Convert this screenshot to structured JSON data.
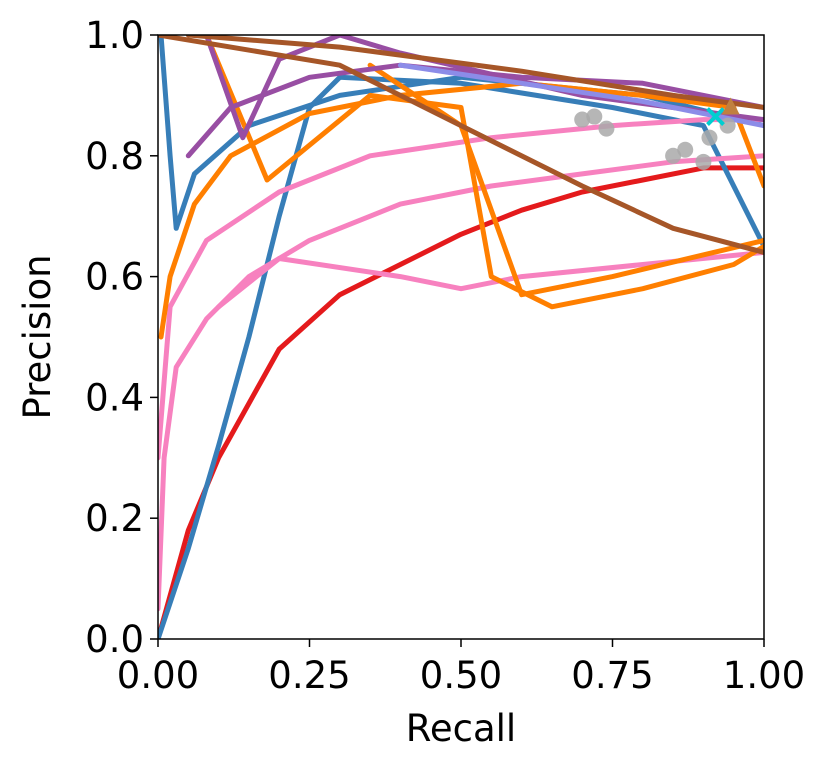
{
  "chart_data": {
    "type": "line",
    "title": "",
    "xlabel": "Recall",
    "ylabel": "Precision",
    "xlim": [
      0,
      1
    ],
    "ylim": [
      0,
      1
    ],
    "xticks": [
      "0.00",
      "0.25",
      "0.50",
      "0.75",
      "1.00"
    ],
    "yticks": [
      "0.0",
      "0.2",
      "0.4",
      "0.6",
      "0.8",
      "1.0"
    ],
    "grid": false,
    "legend": "none",
    "series": [
      {
        "color": "#e41a1c",
        "points": [
          [
            0,
            0
          ],
          [
            0.05,
            0.18
          ],
          [
            0.1,
            0.3
          ],
          [
            0.2,
            0.48
          ],
          [
            0.3,
            0.57
          ],
          [
            0.4,
            0.62
          ],
          [
            0.5,
            0.67
          ],
          [
            0.6,
            0.71
          ],
          [
            0.7,
            0.74
          ],
          [
            0.8,
            0.76
          ],
          [
            0.9,
            0.78
          ],
          [
            1.0,
            0.78
          ]
        ]
      },
      {
        "color": "#377eb8",
        "points": [
          [
            0,
            0
          ],
          [
            0.05,
            0.15
          ],
          [
            0.1,
            0.32
          ],
          [
            0.15,
            0.5
          ],
          [
            0.2,
            0.7
          ],
          [
            0.25,
            0.88
          ],
          [
            0.3,
            0.93
          ],
          [
            0.5,
            0.92
          ],
          [
            0.75,
            0.88
          ],
          [
            0.9,
            0.85
          ],
          [
            1.0,
            0.65
          ]
        ]
      },
      {
        "color": "#377eb8",
        "points": [
          [
            0.005,
            1.0
          ],
          [
            0.02,
            0.8
          ],
          [
            0.03,
            0.68
          ],
          [
            0.06,
            0.77
          ],
          [
            0.15,
            0.85
          ],
          [
            0.3,
            0.9
          ],
          [
            0.5,
            0.93
          ],
          [
            0.8,
            0.9
          ],
          [
            1.0,
            0.85
          ]
        ]
      },
      {
        "color": "#f781bf",
        "points": [
          [
            0,
            0.05
          ],
          [
            0.01,
            0.3
          ],
          [
            0.03,
            0.45
          ],
          [
            0.08,
            0.53
          ],
          [
            0.15,
            0.6
          ],
          [
            0.25,
            0.66
          ],
          [
            0.4,
            0.72
          ],
          [
            0.55,
            0.75
          ],
          [
            0.7,
            0.77
          ],
          [
            0.85,
            0.79
          ],
          [
            1.0,
            0.8
          ]
        ]
      },
      {
        "color": "#f781bf",
        "points": [
          [
            0,
            0.3
          ],
          [
            0.02,
            0.55
          ],
          [
            0.08,
            0.66
          ],
          [
            0.2,
            0.74
          ],
          [
            0.35,
            0.8
          ],
          [
            0.55,
            0.83
          ],
          [
            0.75,
            0.85
          ],
          [
            0.9,
            0.86
          ],
          [
            1.0,
            0.86
          ]
        ]
      },
      {
        "color": "#f781bf",
        "points": [
          [
            0.1,
            0.55
          ],
          [
            0.2,
            0.63
          ],
          [
            0.4,
            0.6
          ],
          [
            0.5,
            0.58
          ],
          [
            0.6,
            0.6
          ],
          [
            0.8,
            0.62
          ],
          [
            1.0,
            0.64
          ]
        ]
      },
      {
        "color": "#ff7f00",
        "points": [
          [
            0.005,
            0.5
          ],
          [
            0.02,
            0.6
          ],
          [
            0.06,
            0.72
          ],
          [
            0.12,
            0.8
          ],
          [
            0.25,
            0.87
          ],
          [
            0.4,
            0.9
          ],
          [
            0.6,
            0.92
          ],
          [
            0.8,
            0.9
          ],
          [
            0.95,
            0.88
          ],
          [
            1.0,
            0.75
          ]
        ]
      },
      {
        "color": "#ff7f00",
        "points": [
          [
            0.08,
            1.0
          ],
          [
            0.18,
            0.76
          ],
          [
            0.35,
            0.9
          ],
          [
            0.5,
            0.88
          ],
          [
            0.55,
            0.6
          ],
          [
            0.65,
            0.55
          ],
          [
            0.8,
            0.58
          ],
          [
            0.95,
            0.62
          ],
          [
            1.0,
            0.65
          ]
        ]
      },
      {
        "color": "#ff7f00",
        "points": [
          [
            0.35,
            0.95
          ],
          [
            0.5,
            0.85
          ],
          [
            0.6,
            0.57
          ],
          [
            0.75,
            0.6
          ],
          [
            1.0,
            0.66
          ]
        ]
      },
      {
        "color": "#984ea3",
        "points": [
          [
            0.05,
            0.8
          ],
          [
            0.12,
            0.88
          ],
          [
            0.25,
            0.93
          ],
          [
            0.4,
            0.95
          ],
          [
            0.6,
            0.93
          ],
          [
            0.8,
            0.92
          ],
          [
            1.0,
            0.88
          ]
        ]
      },
      {
        "color": "#984ea3",
        "points": [
          [
            0.08,
            1.0
          ],
          [
            0.14,
            0.83
          ],
          [
            0.2,
            0.96
          ],
          [
            0.3,
            1.0
          ],
          [
            0.4,
            0.97
          ],
          [
            0.7,
            0.9
          ],
          [
            1.0,
            0.86
          ]
        ]
      },
      {
        "color": "#a65628",
        "points": [
          [
            0.0,
            1.0
          ],
          [
            0.3,
            0.95
          ],
          [
            0.5,
            0.85
          ],
          [
            0.7,
            0.75
          ],
          [
            0.85,
            0.68
          ],
          [
            1.0,
            0.64
          ]
        ]
      },
      {
        "color": "#a65628",
        "points": [
          [
            0.05,
            1.0
          ],
          [
            0.3,
            0.98
          ],
          [
            0.6,
            0.94
          ],
          [
            0.85,
            0.9
          ],
          [
            1.0,
            0.88
          ]
        ]
      },
      {
        "color": "#8c8ce8",
        "points": [
          [
            0.4,
            0.95
          ],
          [
            0.6,
            0.92
          ],
          [
            0.8,
            0.89
          ],
          [
            1.0,
            0.85
          ]
        ]
      }
    ],
    "markers": [
      {
        "shape": "circle",
        "color": "#a9a9a9",
        "x": 0.7,
        "y": 0.86
      },
      {
        "shape": "circle",
        "color": "#a9a9a9",
        "x": 0.72,
        "y": 0.865
      },
      {
        "shape": "circle",
        "color": "#a9a9a9",
        "x": 0.74,
        "y": 0.845
      },
      {
        "shape": "circle",
        "color": "#a9a9a9",
        "x": 0.85,
        "y": 0.8
      },
      {
        "shape": "circle",
        "color": "#a9a9a9",
        "x": 0.87,
        "y": 0.81
      },
      {
        "shape": "circle",
        "color": "#a9a9a9",
        "x": 0.9,
        "y": 0.79
      },
      {
        "shape": "circle",
        "color": "#a9a9a9",
        "x": 0.91,
        "y": 0.83
      },
      {
        "shape": "circle",
        "color": "#a9a9a9",
        "x": 0.94,
        "y": 0.85
      },
      {
        "shape": "x",
        "color": "#00ced1",
        "x": 0.92,
        "y": 0.865
      },
      {
        "shape": "triangle",
        "color": "#c08040",
        "x": 0.945,
        "y": 0.88
      }
    ]
  }
}
